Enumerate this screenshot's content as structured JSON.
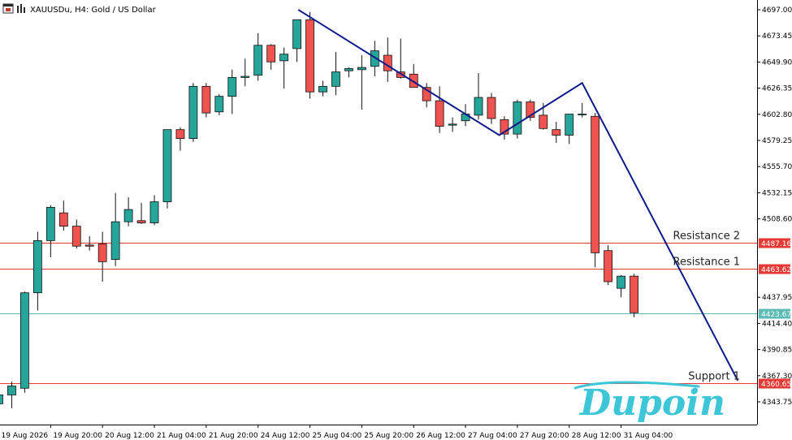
{
  "header": {
    "symbol_title": "XAUUSDu, H4:  Gold / US Dollar"
  },
  "colors": {
    "bull": "#26a69a",
    "bear": "#ef5350",
    "wick": "#111111",
    "resistance": "#e53935",
    "support": "#e53935",
    "current": "#5cbcb5",
    "pattern_line": "#0d1a8a",
    "logo": "#3cc6d8"
  },
  "icons": [
    "window-menu-icon",
    "chart-type-icon"
  ],
  "levels": [
    {
      "name": "Resistance 2",
      "price": 4487.16,
      "label": "Resistance 2",
      "tag": "4487.16",
      "color": "#e53935"
    },
    {
      "name": "Resistance 1",
      "price": 4463.62,
      "label": "Resistance 1",
      "tag": "4463.62",
      "color": "#e53935"
    },
    {
      "name": "current",
      "price": 4423.67,
      "label": "",
      "tag": "4423.67",
      "color": "#5cbcb5"
    },
    {
      "name": "Support 1",
      "price": 4360.65,
      "label": "Support 1",
      "tag": "4360.65",
      "color": "#e53935"
    }
  ],
  "logo": {
    "text": "Dupoin"
  },
  "chart_data": {
    "type": "candlestick",
    "symbol": "XAUUSDu",
    "timeframe": "H4",
    "ylim": [
      4325,
      4705
    ],
    "y_ticks": [
      "4697.00",
      "4673.45",
      "4649.90",
      "4626.35",
      "4602.80",
      "4579.25",
      "4555.70",
      "4532.15",
      "4508.60",
      "4437.95",
      "4414.40",
      "4390.85",
      "4367.30",
      "4343.75"
    ],
    "y_tick_values": [
      4697.0,
      4673.45,
      4649.9,
      4626.35,
      4602.8,
      4579.25,
      4555.7,
      4532.15,
      4508.6,
      4437.95,
      4414.4,
      4390.85,
      4367.3,
      4343.75
    ],
    "x_labels": [
      {
        "text": "19 Aug 2026",
        "index": 0
      },
      {
        "text": "19 Aug 20:00",
        "index": 4
      },
      {
        "text": "20 Aug 12:00",
        "index": 8
      },
      {
        "text": "21 Aug 04:00",
        "index": 12
      },
      {
        "text": "21 Aug 20:00",
        "index": 16
      },
      {
        "text": "24 Aug 12:00",
        "index": 20
      },
      {
        "text": "25 Aug 04:00",
        "index": 24
      },
      {
        "text": "25 Aug 20:00",
        "index": 28
      },
      {
        "text": "26 Aug 12:00",
        "index": 32
      },
      {
        "text": "27 Aug 04:00",
        "index": 36
      },
      {
        "text": "27 Aug 20:00",
        "index": 40
      },
      {
        "text": "28 Aug 12:00",
        "index": 44
      },
      {
        "text": "31 Aug 04:00",
        "index": 48
      }
    ],
    "candles": [
      {
        "o": 4342,
        "h": 4352,
        "l": 4333,
        "c": 4350
      },
      {
        "o": 4350,
        "h": 4362,
        "l": 4338,
        "c": 4358
      },
      {
        "o": 4356,
        "h": 4443,
        "l": 4352,
        "c": 4442
      },
      {
        "o": 4442,
        "h": 4497,
        "l": 4426,
        "c": 4489
      },
      {
        "o": 4489,
        "h": 4521,
        "l": 4474,
        "c": 4519
      },
      {
        "o": 4514,
        "h": 4525,
        "l": 4498,
        "c": 4502
      },
      {
        "o": 4502,
        "h": 4508,
        "l": 4482,
        "c": 4484
      },
      {
        "o": 4485,
        "h": 4493,
        "l": 4480,
        "c": 4484
      },
      {
        "o": 4486,
        "h": 4497,
        "l": 4452,
        "c": 4470
      },
      {
        "o": 4472,
        "h": 4532,
        "l": 4466,
        "c": 4506
      },
      {
        "o": 4506,
        "h": 4528,
        "l": 4502,
        "c": 4517
      },
      {
        "o": 4507,
        "h": 4523,
        "l": 4504,
        "c": 4505
      },
      {
        "o": 4505,
        "h": 4530,
        "l": 4503,
        "c": 4524
      },
      {
        "o": 4524,
        "h": 4589,
        "l": 4518,
        "c": 4589
      },
      {
        "o": 4589,
        "h": 4591,
        "l": 4570,
        "c": 4581
      },
      {
        "o": 4581,
        "h": 4631,
        "l": 4578,
        "c": 4628
      },
      {
        "o": 4628,
        "h": 4631,
        "l": 4600,
        "c": 4604
      },
      {
        "o": 4605,
        "h": 4621,
        "l": 4602,
        "c": 4619
      },
      {
        "o": 4619,
        "h": 4643,
        "l": 4603,
        "c": 4636
      },
      {
        "o": 4636,
        "h": 4653,
        "l": 4628,
        "c": 4637
      },
      {
        "o": 4638,
        "h": 4676,
        "l": 4633,
        "c": 4665
      },
      {
        "o": 4665,
        "h": 4666,
        "l": 4643,
        "c": 4650
      },
      {
        "o": 4651,
        "h": 4663,
        "l": 4626,
        "c": 4657
      },
      {
        "o": 4662,
        "h": 4688,
        "l": 4650,
        "c": 4688
      },
      {
        "o": 4688,
        "h": 4695,
        "l": 4617,
        "c": 4623
      },
      {
        "o": 4623,
        "h": 4633,
        "l": 4619,
        "c": 4628
      },
      {
        "o": 4628,
        "h": 4659,
        "l": 4620,
        "c": 4641
      },
      {
        "o": 4642,
        "h": 4645,
        "l": 4636,
        "c": 4644
      },
      {
        "o": 4643,
        "h": 4656,
        "l": 4607,
        "c": 4645
      },
      {
        "o": 4646,
        "h": 4669,
        "l": 4637,
        "c": 4660
      },
      {
        "o": 4656,
        "h": 4672,
        "l": 4632,
        "c": 4642
      },
      {
        "o": 4641,
        "h": 4671,
        "l": 4635,
        "c": 4636
      },
      {
        "o": 4639,
        "h": 4648,
        "l": 4627,
        "c": 4627
      },
      {
        "o": 4627,
        "h": 4631,
        "l": 4609,
        "c": 4615
      },
      {
        "o": 4615,
        "h": 4628,
        "l": 4586,
        "c": 4592
      },
      {
        "o": 4593,
        "h": 4600,
        "l": 4587,
        "c": 4594
      },
      {
        "o": 4597,
        "h": 4612,
        "l": 4592,
        "c": 4603
      },
      {
        "o": 4602,
        "h": 4640,
        "l": 4598,
        "c": 4618
      },
      {
        "o": 4618,
        "h": 4622,
        "l": 4594,
        "c": 4599
      },
      {
        "o": 4598,
        "h": 4601,
        "l": 4580,
        "c": 4585
      },
      {
        "o": 4585,
        "h": 4616,
        "l": 4581,
        "c": 4614
      },
      {
        "o": 4614,
        "h": 4616,
        "l": 4597,
        "c": 4600
      },
      {
        "o": 4602,
        "h": 4613,
        "l": 4589,
        "c": 4590
      },
      {
        "o": 4589,
        "h": 4596,
        "l": 4577,
        "c": 4584
      },
      {
        "o": 4584,
        "h": 4603,
        "l": 4576,
        "c": 4603
      },
      {
        "o": 4603,
        "h": 4613,
        "l": 4600,
        "c": 4603
      },
      {
        "o": 4601,
        "h": 4604,
        "l": 4465,
        "c": 4478
      },
      {
        "o": 4480,
        "h": 4485,
        "l": 4449,
        "c": 4452
      },
      {
        "o": 4446,
        "h": 4458,
        "l": 4438,
        "c": 4457
      },
      {
        "o": 4457,
        "h": 4459,
        "l": 4420,
        "c": 4424
      }
    ],
    "pattern_line": [
      {
        "index": 23.1,
        "price": 4697.0
      },
      {
        "index": 38.6,
        "price": 4584.0
      },
      {
        "index": 45.0,
        "price": 4631.0
      },
      {
        "index": 57.0,
        "price": 4363.0
      }
    ]
  }
}
